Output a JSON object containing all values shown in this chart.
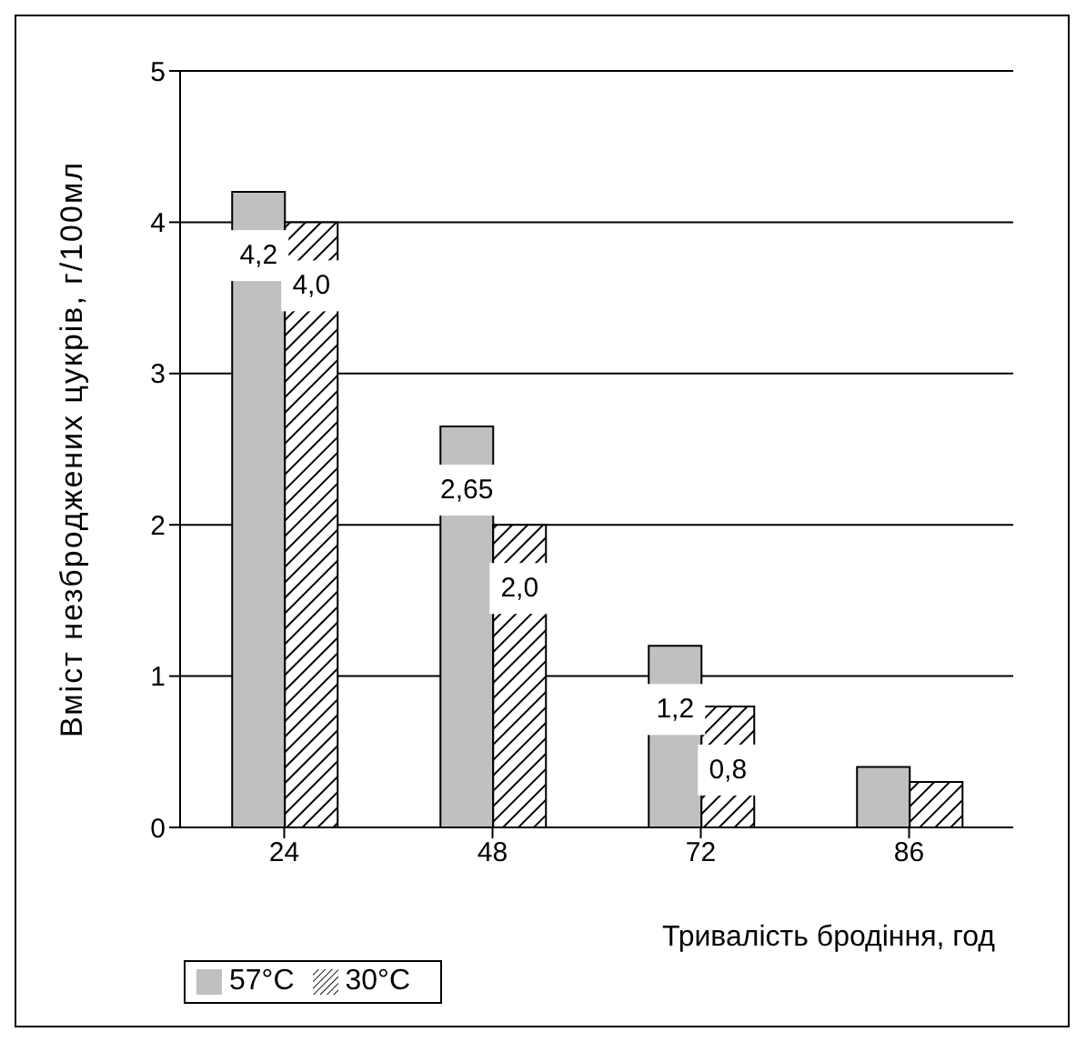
{
  "chart_data": {
    "type": "bar",
    "xlabel": "Тривалість бродіння, год",
    "ylabel": "Вміст незброджених цукрів, г/100мл",
    "categories": [
      "24",
      "48",
      "72",
      "86"
    ],
    "series": [
      {
        "name": "57°C",
        "color": "#c0c0c0",
        "values": [
          4.2,
          2.65,
          1.2,
          0.4
        ],
        "value_labels": [
          "4,2",
          "2,65",
          "1,2",
          null
        ]
      },
      {
        "name": "30°C",
        "color": "#000000",
        "values": [
          4.0,
          2.0,
          0.8,
          0.3
        ],
        "value_labels": [
          "4,0",
          "2,0",
          "0,8",
          null
        ]
      }
    ],
    "ylim": [
      0,
      5
    ],
    "yticks": [
      0,
      1,
      2,
      3,
      4,
      5
    ],
    "grid": "y",
    "legend": "bottom left"
  }
}
